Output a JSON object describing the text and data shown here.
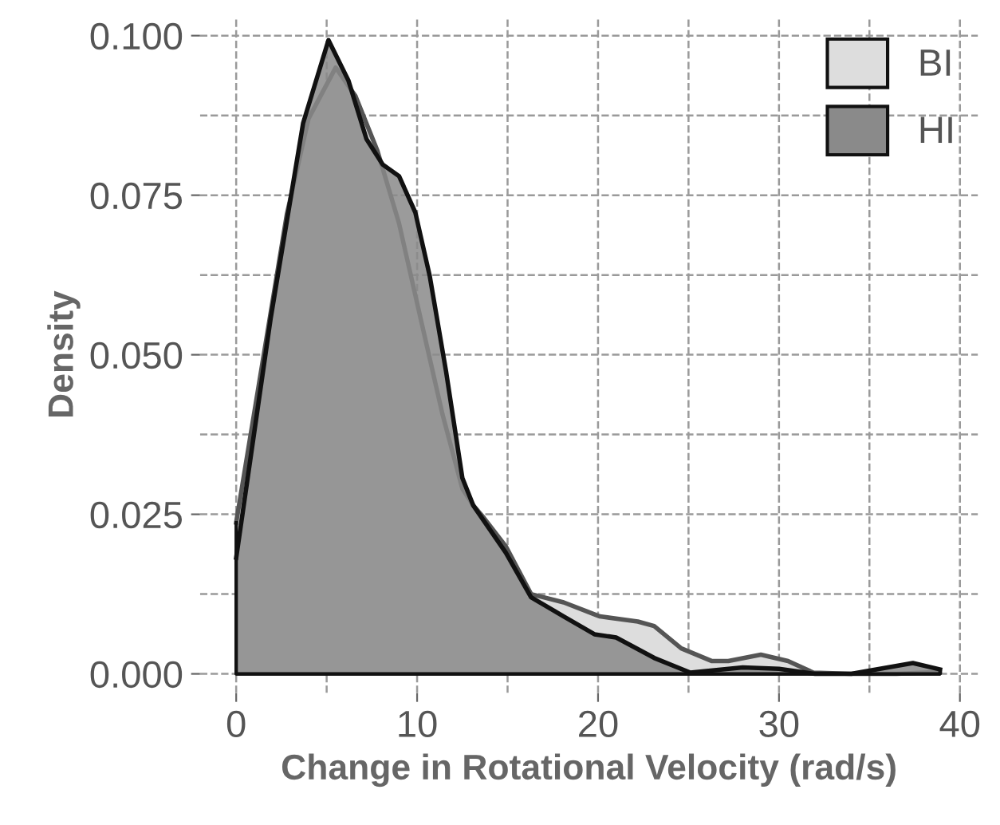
{
  "chart_data": {
    "type": "area",
    "xlabel": "Change in Rotational Velocity (rad/s)",
    "ylabel": "Density",
    "xlim": [
      -2,
      41
    ],
    "ylim": [
      -0.003,
      0.103
    ],
    "xticks": [
      0,
      10,
      20,
      30,
      40
    ],
    "yticks": [
      {
        "value": 0,
        "label": "0.000"
      },
      {
        "value": 0.025,
        "label": "0.025"
      },
      {
        "value": 0.05,
        "label": "0.050"
      },
      {
        "value": 0.075,
        "label": "0.075"
      },
      {
        "value": 0.1,
        "label": "0.100"
      }
    ],
    "grid": true,
    "legend": "top right",
    "line_style": "dashed",
    "series": [
      {
        "name": "BI",
        "color": "#dddddd",
        "x": [
          0,
          2.8,
          4.0,
          5.5,
          6.6,
          7.8,
          9.0,
          10.2,
          11.4,
          12.5,
          13.1,
          13.7,
          14.9,
          16.3,
          18.1,
          20.1,
          22.2,
          23.1,
          24.6,
          26.3,
          27.2,
          29.0,
          30.5,
          31.9,
          34.0,
          36.5,
          38.9
        ],
        "values": [
          0.0237,
          0.072,
          0.087,
          0.095,
          0.0905,
          0.082,
          0.0706,
          0.0556,
          0.0407,
          0.029,
          0.0264,
          0.0244,
          0.02,
          0.0125,
          0.0112,
          0.009,
          0.0082,
          0.0075,
          0.004,
          0.002,
          0.002,
          0.003,
          0.002,
          0.0002,
          0,
          0,
          0.0003
        ]
      },
      {
        "name": "HI",
        "color": "#8a8a8a",
        "x": [
          0,
          1.9,
          3.7,
          5.1,
          6.2,
          7.2,
          8.1,
          9.0,
          9.9,
          10.7,
          11.6,
          12.5,
          13.1,
          14.9,
          16.3,
          18.1,
          19.8,
          21.0,
          23.1,
          25.1,
          28.0,
          30.0,
          32.0,
          34.0,
          37.4,
          38.9
        ],
        "values": [
          0.0182,
          0.0556,
          0.0863,
          0.0993,
          0.093,
          0.0838,
          0.0798,
          0.078,
          0.0723,
          0.0623,
          0.0474,
          0.0307,
          0.0264,
          0.019,
          0.012,
          0.009,
          0.0062,
          0.0057,
          0.0025,
          0.0002,
          0.001,
          0.0008,
          0,
          0,
          0.0017,
          0.0007
        ]
      }
    ]
  }
}
